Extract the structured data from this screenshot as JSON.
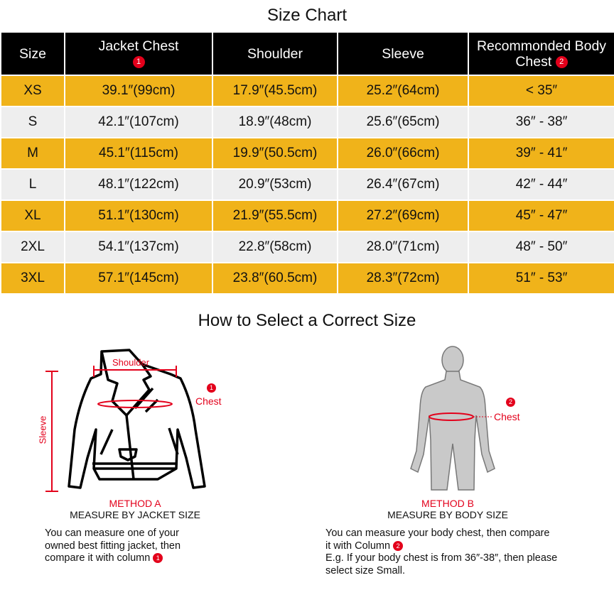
{
  "title": "Size Chart",
  "columns": [
    "Size",
    "Jacket Chest",
    "Shoulder",
    "Sleeve",
    "Recommonded Body  Chest"
  ],
  "badges": {
    "one": "1",
    "two": "2"
  },
  "rows": [
    [
      "XS",
      "39.1″(99cm)",
      "17.9″(45.5cm)",
      "25.2″(64cm)",
      "< 35″"
    ],
    [
      "S",
      "42.1″(107cm)",
      "18.9″(48cm)",
      "25.6″(65cm)",
      "36″ - 38″"
    ],
    [
      "M",
      "45.1″(115cm)",
      "19.9″(50.5cm)",
      "26.0″(66cm)",
      "39″ - 41″"
    ],
    [
      "L",
      "48.1″(122cm)",
      "20.9″(53cm)",
      "26.4″(67cm)",
      "42″ - 44″"
    ],
    [
      "XL",
      "51.1″(130cm)",
      "21.9″(55.5cm)",
      "27.2″(69cm)",
      "45″ - 47″"
    ],
    [
      "2XL",
      "54.1″(137cm)",
      "22.8″(58cm)",
      "28.0″(71cm)",
      "48″ - 50″"
    ],
    [
      "3XL",
      "57.1″(145cm)",
      "23.8″(60.5cm)",
      "28.3″(72cm)",
      "51″ - 53″"
    ]
  ],
  "colors": {
    "accent": "#F0B31A",
    "alt_row": "#EEEEEE",
    "header": "#000000",
    "marker": "#e3001b"
  },
  "section_title": "How to Select a Correct Size",
  "method_a": {
    "labels": {
      "shoulder": "Shoulder",
      "chest": "Chest",
      "sleeve": "Sleeve"
    },
    "name": "METHOD A",
    "subtitle": "MEASURE BY JACKET SIZE",
    "desc1": "You can measure one of your",
    "desc2": "owned best fitting jacket, then",
    "desc3": "compare it with column"
  },
  "method_b": {
    "labels": {
      "chest": "Chest"
    },
    "name": "METHOD B",
    "subtitle": "MEASURE BY BODY SIZE",
    "desc1": "You can measure your body chest, then compare",
    "desc2": "it with Column",
    "desc3": "E.g. If your body chest is from 36″-38″, then please",
    "desc4": "select size Small."
  }
}
